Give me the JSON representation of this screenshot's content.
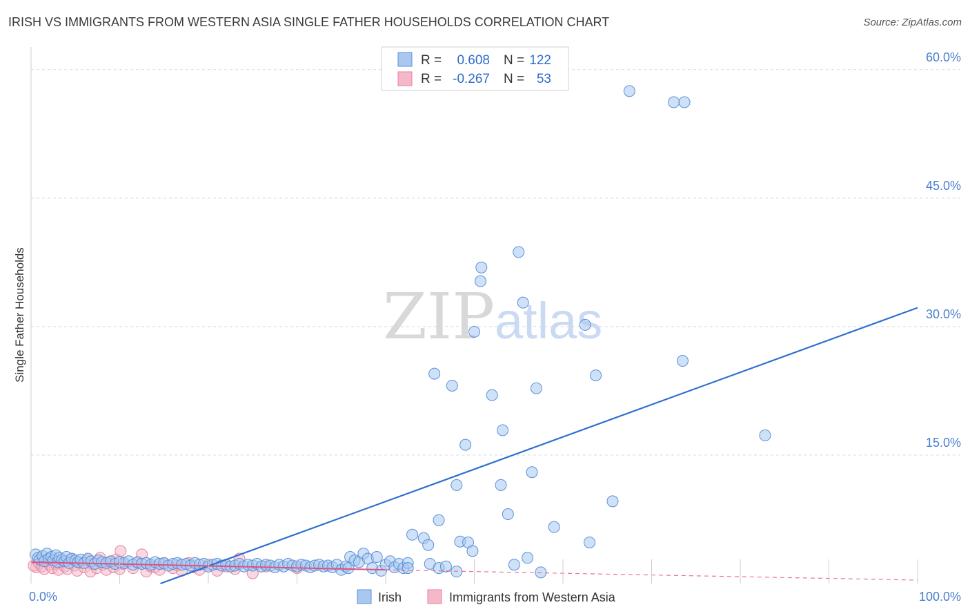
{
  "header": {
    "title": "IRISH VS IMMIGRANTS FROM WESTERN ASIA SINGLE FATHER HOUSEHOLDS CORRELATION CHART",
    "source": "Source: ZipAtlas.com"
  },
  "watermark": {
    "zip": "ZIP",
    "atlas": "atlas"
  },
  "colors": {
    "irish_fill": "#a8c8f0",
    "irish_stroke": "#5a8fd8",
    "irish_line": "#2f6fd0",
    "wa_fill": "#f5b8c8",
    "wa_stroke": "#e87fa0",
    "wa_line": "#e0507e",
    "grid": "#d8d8d8",
    "tick": "#4a7fd0"
  },
  "legend": {
    "rows": [
      {
        "r_label": "R =",
        "r_value": "0.608",
        "n_label": "N =",
        "n_value": "122"
      },
      {
        "r_label": "R =",
        "r_value": "-0.267",
        "n_label": "N =",
        "n_value": "53"
      }
    ]
  },
  "chart_data": {
    "type": "scatter",
    "title": "IRISH VS IMMIGRANTS FROM WESTERN ASIA SINGLE FATHER HOUSEHOLDS CORRELATION CHART",
    "ylabel": "Single Father Households",
    "xlabel": "",
    "xlim": [
      0,
      100
    ],
    "ylim": [
      0,
      62
    ],
    "x_tick_labels": [
      "0.0%",
      "100.0%"
    ],
    "y_ticks": [
      15,
      30,
      45,
      60
    ],
    "y_tick_labels": [
      "15.0%",
      "30.0%",
      "45.0%",
      "60.0%"
    ],
    "grid": true,
    "legend_position": "top-center",
    "series": [
      {
        "name": "Irish",
        "stats": {
          "R": 0.608,
          "N": 122
        },
        "trendline": {
          "x": [
            0,
            100
          ],
          "y": [
            -5.5,
            32.2
          ],
          "style": "solid"
        },
        "points": [
          [
            0.5,
            3.4
          ],
          [
            0.8,
            3.0
          ],
          [
            1.0,
            2.8
          ],
          [
            1.3,
            3.2
          ],
          [
            1.5,
            2.6
          ],
          [
            1.8,
            3.5
          ],
          [
            2.0,
            2.9
          ],
          [
            2.3,
            3.1
          ],
          [
            2.5,
            2.7
          ],
          [
            2.8,
            3.3
          ],
          [
            3.0,
            2.5
          ],
          [
            3.2,
            3.0
          ],
          [
            3.5,
            2.8
          ],
          [
            3.8,
            2.6
          ],
          [
            4.0,
            3.1
          ],
          [
            4.3,
            2.4
          ],
          [
            4.6,
            2.9
          ],
          [
            5.0,
            2.7
          ],
          [
            5.3,
            2.5
          ],
          [
            5.6,
            2.8
          ],
          [
            6.0,
            2.4
          ],
          [
            6.4,
            2.9
          ],
          [
            6.8,
            2.6
          ],
          [
            7.2,
            2.3
          ],
          [
            7.6,
            2.7
          ],
          [
            8.0,
            2.5
          ],
          [
            8.5,
            2.4
          ],
          [
            9.0,
            2.6
          ],
          [
            9.5,
            2.3
          ],
          [
            10.0,
            2.5
          ],
          [
            10.5,
            2.4
          ],
          [
            11.0,
            2.6
          ],
          [
            11.5,
            2.2
          ],
          [
            12.0,
            2.5
          ],
          [
            12.5,
            2.3
          ],
          [
            13.0,
            2.4
          ],
          [
            13.5,
            2.2
          ],
          [
            14.0,
            2.5
          ],
          [
            14.5,
            2.3
          ],
          [
            15.0,
            2.4
          ],
          [
            15.5,
            2.1
          ],
          [
            16.0,
            2.3
          ],
          [
            16.5,
            2.4
          ],
          [
            17.0,
            2.2
          ],
          [
            17.5,
            2.3
          ],
          [
            18.0,
            2.1
          ],
          [
            18.5,
            2.4
          ],
          [
            19.0,
            2.2
          ],
          [
            19.5,
            2.3
          ],
          [
            20.0,
            2.0
          ],
          [
            20.5,
            2.2
          ],
          [
            21.0,
            2.3
          ],
          [
            21.5,
            2.1
          ],
          [
            22.0,
            2.2
          ],
          [
            22.5,
            2.0
          ],
          [
            23.0,
            2.1
          ],
          [
            23.5,
            2.3
          ],
          [
            24.0,
            2.0
          ],
          [
            24.5,
            2.2
          ],
          [
            25.0,
            2.1
          ],
          [
            25.5,
            2.3
          ],
          [
            26.0,
            2.0
          ],
          [
            26.5,
            2.2
          ],
          [
            27.0,
            2.1
          ],
          [
            27.5,
            1.9
          ],
          [
            28.0,
            2.2
          ],
          [
            28.5,
            2.0
          ],
          [
            29.0,
            2.3
          ],
          [
            29.5,
            2.1
          ],
          [
            30.0,
            2.0
          ],
          [
            30.5,
            2.2
          ],
          [
            31.0,
            2.1
          ],
          [
            31.5,
            1.9
          ],
          [
            32.0,
            2.1
          ],
          [
            32.5,
            2.2
          ],
          [
            33.0,
            2.0
          ],
          [
            33.5,
            2.1
          ],
          [
            34.0,
            1.9
          ],
          [
            34.5,
            2.2
          ],
          [
            35.0,
            1.6
          ],
          [
            35.5,
            2.0
          ],
          [
            35.8,
            1.8
          ],
          [
            36.0,
            3.1
          ],
          [
            36.5,
            2.7
          ],
          [
            37.0,
            2.5
          ],
          [
            37.5,
            3.5
          ],
          [
            38.0,
            2.9
          ],
          [
            38.5,
            1.8
          ],
          [
            39.0,
            3.1
          ],
          [
            39.5,
            1.5
          ],
          [
            40.0,
            2.2
          ],
          [
            40.5,
            2.6
          ],
          [
            41.0,
            1.9
          ],
          [
            41.5,
            2.3
          ],
          [
            42.0,
            1.8
          ],
          [
            42.5,
            2.4
          ],
          [
            43.0,
            5.7
          ],
          [
            44.3,
            5.3
          ],
          [
            44.8,
            4.5
          ],
          [
            45.0,
            2.3
          ],
          [
            46.0,
            1.8
          ],
          [
            46.8,
            2.0
          ],
          [
            48.0,
            1.4
          ],
          [
            42.5,
            1.8
          ],
          [
            48.4,
            4.9
          ],
          [
            49.3,
            4.8
          ],
          [
            49.8,
            3.8
          ],
          [
            46.0,
            7.4
          ],
          [
            45.5,
            24.5
          ],
          [
            47.5,
            23.1
          ],
          [
            48.0,
            11.5
          ],
          [
            49.0,
            16.2
          ],
          [
            50.0,
            29.4
          ],
          [
            50.7,
            35.3
          ],
          [
            50.8,
            36.9
          ],
          [
            52.0,
            22.0
          ],
          [
            53.0,
            11.5
          ],
          [
            53.2,
            17.9
          ],
          [
            53.8,
            8.1
          ],
          [
            55.0,
            38.7
          ],
          [
            55.5,
            32.8
          ],
          [
            56.5,
            13.0
          ],
          [
            57.0,
            22.8
          ],
          [
            56.0,
            3.0
          ],
          [
            57.5,
            1.3
          ],
          [
            59.0,
            6.6
          ],
          [
            62.5,
            30.2
          ],
          [
            63.0,
            4.8
          ],
          [
            63.7,
            24.3
          ],
          [
            65.6,
            9.6
          ],
          [
            67.5,
            57.5
          ],
          [
            73.5,
            26.0
          ],
          [
            72.5,
            56.2
          ],
          [
            73.7,
            56.2
          ],
          [
            82.8,
            17.3
          ],
          [
            54.5,
            2.2
          ]
        ]
      },
      {
        "name": "Immigrants from Western Asia",
        "stats": {
          "R": -0.267,
          "N": 53
        },
        "trendline": {
          "x": [
            0,
            40
          ],
          "y": [
            2.5,
            1.6
          ],
          "x_dashed": [
            40,
            100
          ],
          "y_dashed": [
            1.6,
            0.4
          ],
          "style": "solid-then-dashed"
        },
        "points": [
          [
            0.3,
            2.1
          ],
          [
            0.6,
            1.9
          ],
          [
            0.9,
            2.4
          ],
          [
            1.2,
            2.0
          ],
          [
            1.5,
            1.7
          ],
          [
            1.8,
            2.6
          ],
          [
            2.1,
            2.2
          ],
          [
            2.4,
            1.8
          ],
          [
            2.8,
            2.3
          ],
          [
            3.1,
            1.6
          ],
          [
            3.4,
            2.5
          ],
          [
            3.8,
            2.0
          ],
          [
            4.1,
            1.7
          ],
          [
            4.5,
            2.8
          ],
          [
            4.9,
            2.1
          ],
          [
            5.2,
            1.5
          ],
          [
            5.6,
            2.4
          ],
          [
            6.0,
            1.9
          ],
          [
            6.3,
            2.7
          ],
          [
            6.7,
            1.4
          ],
          [
            7.0,
            2.3
          ],
          [
            7.4,
            1.8
          ],
          [
            7.8,
            3.0
          ],
          [
            8.1,
            2.2
          ],
          [
            8.5,
            1.6
          ],
          [
            8.9,
            2.5
          ],
          [
            9.3,
            1.9
          ],
          [
            9.6,
            2.8
          ],
          [
            10.0,
            1.7
          ],
          [
            10.4,
            2.3
          ],
          [
            10.1,
            3.8
          ],
          [
            11.5,
            1.8
          ],
          [
            12.0,
            2.4
          ],
          [
            12.5,
            3.4
          ],
          [
            13.0,
            1.4
          ],
          [
            13.5,
            2.0
          ],
          [
            14.0,
            1.9
          ],
          [
            14.5,
            1.6
          ],
          [
            15.0,
            2.3
          ],
          [
            16.0,
            1.8
          ],
          [
            16.5,
            2.1
          ],
          [
            17.0,
            1.5
          ],
          [
            17.8,
            2.4
          ],
          [
            18.3,
            1.9
          ],
          [
            19.0,
            1.6
          ],
          [
            20.0,
            2.2
          ],
          [
            21.0,
            1.5
          ],
          [
            22.0,
            2.0
          ],
          [
            23.0,
            1.7
          ],
          [
            23.5,
            2.9
          ],
          [
            25.0,
            1.2
          ],
          [
            26.5,
            2.0
          ],
          [
            30.0,
            1.8
          ]
        ]
      }
    ]
  },
  "bottom_legend": {
    "items": [
      {
        "label": "Irish"
      },
      {
        "label": "Immigrants from Western Asia"
      }
    ]
  }
}
